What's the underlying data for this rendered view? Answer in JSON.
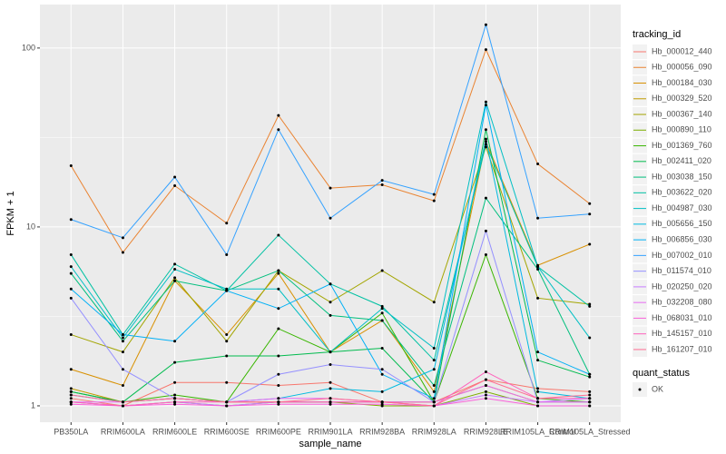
{
  "chart_data": {
    "type": "line",
    "x_label": "sample_name",
    "y_label": "FPKM + 1",
    "ylog": true,
    "grid": true,
    "categories": [
      "PB350LA",
      "RRIM600LA",
      "RRIM600LE",
      "RRIM600SE",
      "RRIM600PE",
      "RRIM901LA",
      "RRIM928BA",
      "RRIM928LA",
      "RRIM928LE",
      "RRIM105LA_Control",
      "RRIM105LA_Stressed"
    ],
    "ylim": [
      0.81,
      175
    ],
    "yticks": [
      1,
      10,
      100
    ],
    "legend_title": "tracking_id",
    "legend_position": "right",
    "point_legend_title": "quant_status",
    "point_legend_label": "OK",
    "point_color": "#000000",
    "series": [
      {
        "name": "Hb_000012_440",
        "color": "#F8766D",
        "values": [
          1.1,
          1,
          1.35,
          1.35,
          1.3,
          1.35,
          1.05,
          1.05,
          1.4,
          1.25,
          1.2
        ]
      },
      {
        "name": "Hb_000056_090",
        "color": "#EA8331",
        "values": [
          22,
          7.2,
          17,
          10.5,
          42,
          16.5,
          17.2,
          14,
          98,
          22.5,
          13.5
        ]
      },
      {
        "name": "Hb_000184_030",
        "color": "#D89000",
        "values": [
          1.6,
          1.3,
          5,
          2.5,
          5.5,
          2,
          3,
          1.2,
          30,
          6.1,
          8
        ]
      },
      {
        "name": "Hb_000329_520",
        "color": "#C09B00",
        "values": [
          1.25,
          1.05,
          1.1,
          1.05,
          1.05,
          1.05,
          1.05,
          1.05,
          1.3,
          1.05,
          1.05
        ]
      },
      {
        "name": "Hb_000367_140",
        "color": "#A3A500",
        "values": [
          2.5,
          2,
          5.2,
          2.3,
          5.7,
          3.8,
          5.7,
          3.8,
          28,
          4,
          3.7
        ]
      },
      {
        "name": "Hb_000890_110",
        "color": "#7CAE00",
        "values": [
          1.05,
          1,
          1.05,
          1,
          1.05,
          1.05,
          1,
          1,
          1.2,
          1,
          1
        ]
      },
      {
        "name": "Hb_001369_760",
        "color": "#39B600",
        "values": [
          1.2,
          1.05,
          1.15,
          1.05,
          2.7,
          2,
          3.3,
          1.05,
          7,
          1.1,
          1.05
        ]
      },
      {
        "name": "Hb_002411_020",
        "color": "#00BB4E",
        "values": [
          1.2,
          1.05,
          1.75,
          1.9,
          1.9,
          2,
          2.1,
          1.05,
          35,
          1.8,
          1.45
        ]
      },
      {
        "name": "Hb_003038_150",
        "color": "#00BF7D",
        "values": [
          5.5,
          2.3,
          5,
          4.4,
          5.7,
          3.2,
          3,
          1.3,
          14.5,
          5.8,
          1.5
        ]
      },
      {
        "name": "Hb_003622_020",
        "color": "#00C1A3",
        "values": [
          7,
          2.5,
          6.2,
          4.4,
          9,
          4.8,
          3.6,
          1.8,
          29,
          6,
          3.6
        ]
      },
      {
        "name": "Hb_004987_030",
        "color": "#00BFC4",
        "values": [
          6,
          2.4,
          5.8,
          4.5,
          4.5,
          2,
          3.5,
          2.1,
          50,
          6,
          2.4
        ]
      },
      {
        "name": "Hb_005656_150",
        "color": "#00BAE0",
        "values": [
          1.15,
          1.05,
          1.1,
          1.05,
          1.1,
          1.25,
          1.2,
          1.6,
          31,
          1.2,
          1.1
        ]
      },
      {
        "name": "Hb_006856_030",
        "color": "#00B0F6",
        "values": [
          4.5,
          2.5,
          2.3,
          4.4,
          3.5,
          4.8,
          1.5,
          1.1,
          48,
          2,
          1.5
        ]
      },
      {
        "name": "Hb_007002_010",
        "color": "#35A2FF",
        "values": [
          11,
          8.7,
          19,
          7,
          35,
          11.2,
          18.2,
          15.2,
          135,
          11.2,
          11.8
        ]
      },
      {
        "name": "Hb_011574_010",
        "color": "#9590FF",
        "values": [
          4,
          1.6,
          1.1,
          1.05,
          1.5,
          1.7,
          1.6,
          1.05,
          9.5,
          1.05,
          1.05
        ]
      },
      {
        "name": "Hb_020250_020",
        "color": "#C77CFF",
        "values": [
          1.05,
          1,
          1.05,
          1,
          1.05,
          1.05,
          1.05,
          1,
          1.15,
          1.05,
          1.1
        ]
      },
      {
        "name": "Hb_032208_080",
        "color": "#E76BF3",
        "values": [
          1.05,
          1.05,
          1.1,
          1.05,
          1.1,
          1.1,
          1.05,
          1.05,
          1.3,
          1.05,
          1.05
        ]
      },
      {
        "name": "Hb_068031_010",
        "color": "#FA62DB",
        "values": [
          1.02,
          1,
          1.02,
          1,
          1.02,
          1.02,
          1.02,
          1,
          1.1,
          1,
          1
        ]
      },
      {
        "name": "Hb_145157_010",
        "color": "#FF62BC",
        "values": [
          1.05,
          1,
          1.05,
          1.05,
          1.05,
          1.05,
          1.05,
          1,
          1.55,
          1.1,
          1.1
        ]
      },
      {
        "name": "Hb_161207_010",
        "color": "#FF6C91",
        "values": [
          1.15,
          1.05,
          1.1,
          1.05,
          1.05,
          1.1,
          1.05,
          1,
          1.4,
          1.1,
          1.15
        ]
      }
    ]
  }
}
